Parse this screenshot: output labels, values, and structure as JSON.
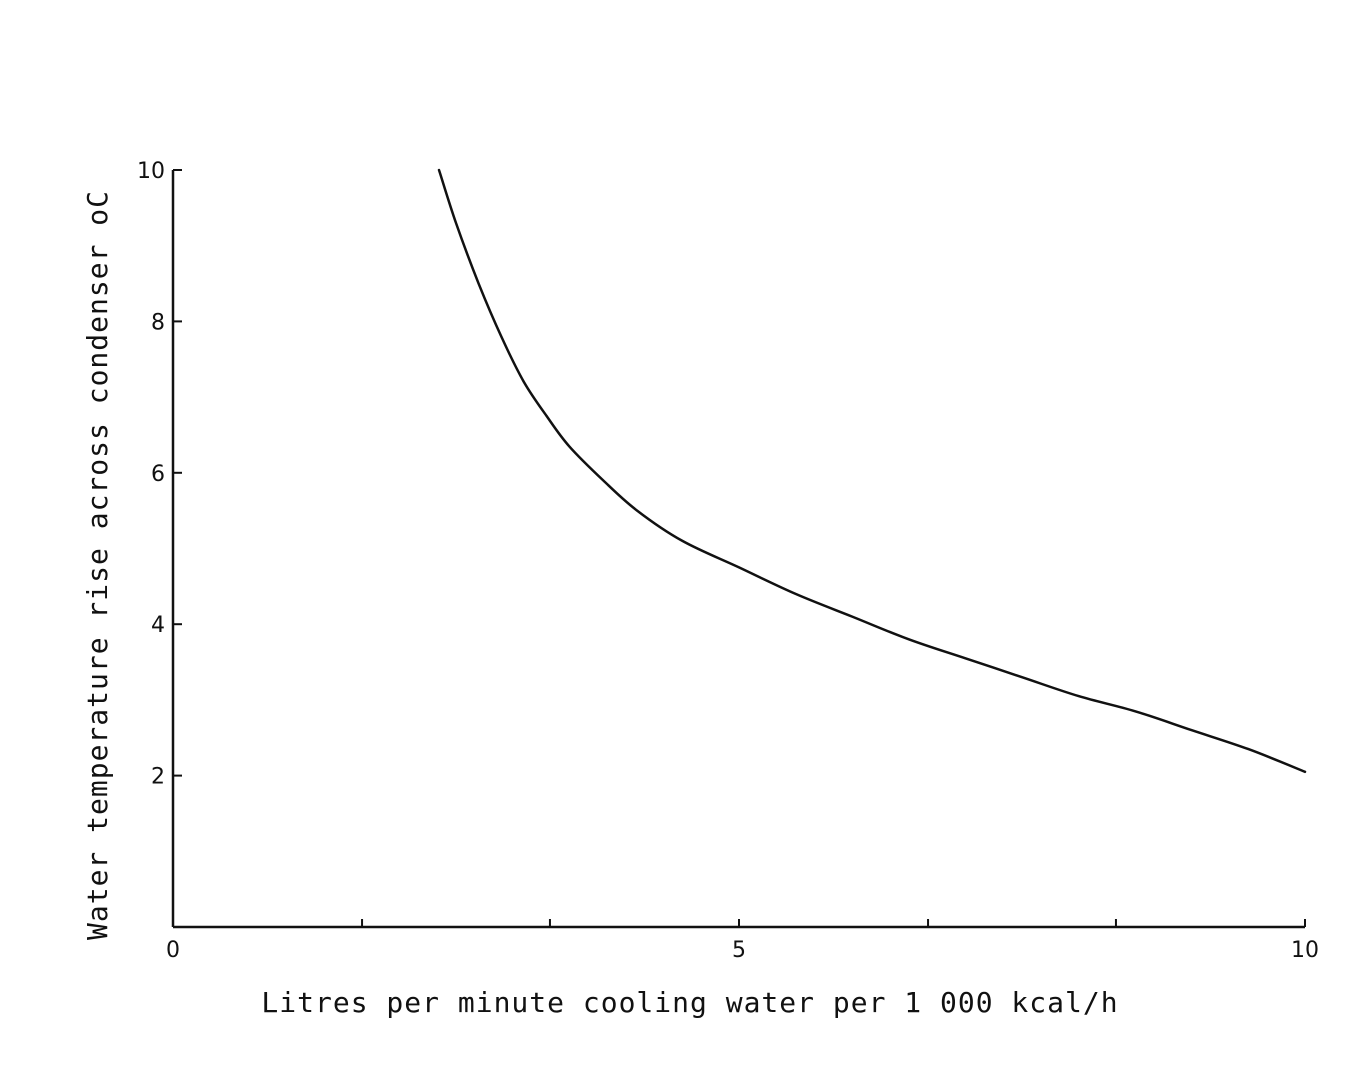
{
  "chart_data": {
    "type": "line",
    "xlabel": "Litres per minute cooling water per 1 000 kcal/h",
    "ylabel": "Water temperature rise across condenser oC",
    "xlim": [
      0,
      10
    ],
    "ylim": [
      0,
      10
    ],
    "x_ticks": [
      0,
      1.67,
      3.33,
      5,
      6.67,
      8.33,
      10
    ],
    "x_tick_labels": [
      {
        "value": 0,
        "label": "0"
      },
      {
        "value": 5,
        "label": "5"
      },
      {
        "value": 10,
        "label": "10"
      }
    ],
    "y_ticks": [
      2,
      4,
      6,
      8,
      10
    ],
    "y_tick_labels": [
      {
        "value": 2,
        "label": "2"
      },
      {
        "value": 4,
        "label": "4"
      },
      {
        "value": 6,
        "label": "6"
      },
      {
        "value": 8,
        "label": "8"
      },
      {
        "value": 10,
        "label": "10"
      }
    ],
    "grid": false,
    "series": [
      {
        "x": [
          2.35,
          2.5,
          2.7,
          2.9,
          3.1,
          3.3,
          3.5,
          3.8,
          4.1,
          4.5,
          5.0,
          5.5,
          6.0,
          6.5,
          7.0,
          7.5,
          8.0,
          8.5,
          9.0,
          9.5,
          10.0
        ],
        "values": [
          10.0,
          9.3,
          8.5,
          7.8,
          7.2,
          6.75,
          6.35,
          5.9,
          5.5,
          5.1,
          4.75,
          4.4,
          4.1,
          3.8,
          3.55,
          3.3,
          3.05,
          2.85,
          2.6,
          2.35,
          2.05
        ]
      }
    ]
  }
}
